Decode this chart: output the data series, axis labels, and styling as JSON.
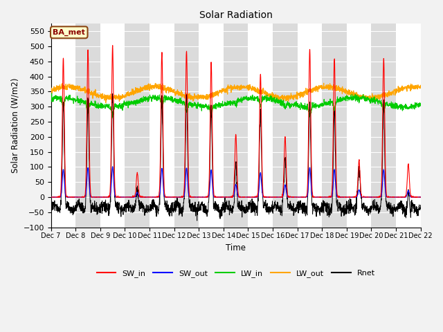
{
  "title": "Solar Radiation",
  "ylabel": "Solar Radiation (W/m2)",
  "xlabel": "Time",
  "ylim": [
    -100,
    575
  ],
  "yticks": [
    -100,
    -50,
    0,
    50,
    100,
    150,
    200,
    250,
    300,
    350,
    400,
    450,
    500,
    550
  ],
  "annotation": "BA_met",
  "series_colors": {
    "SW_in": "#ff0000",
    "SW_out": "#0000ff",
    "LW_in": "#00cc00",
    "LW_out": "#ffa500",
    "Rnet": "#000000"
  },
  "start_day": 7,
  "end_day": 22,
  "n_days": 15,
  "points_per_day": 144,
  "day_peaks_sw": [
    460,
    490,
    500,
    80,
    480,
    485,
    450,
    210,
    410,
    200,
    490,
    460,
    120,
    460,
    110
  ],
  "figsize": [
    6.4,
    4.8
  ],
  "dpi": 100
}
